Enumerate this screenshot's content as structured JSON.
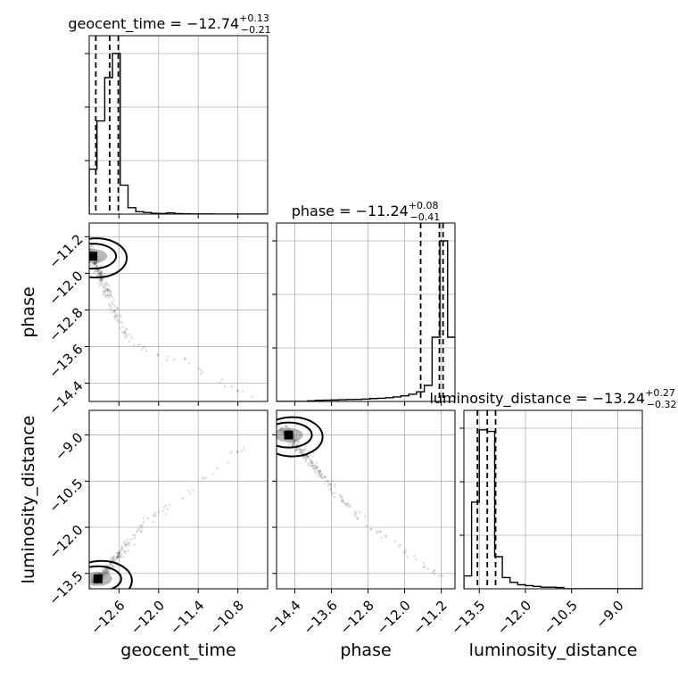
{
  "chart_data": {
    "type": "corner",
    "parameters": [
      {
        "name": "geocent_time",
        "xlabel": "geocent_time",
        "ylabel": "",
        "range": [
          -13.05,
          -10.35
        ],
        "ticks": [
          -12.6,
          -12.0,
          -11.4,
          -10.8
        ],
        "tick_labels": [
          "−12.6",
          "−12.0",
          "−11.4",
          "−10.8"
        ],
        "title": {
          "main": "geocent_time = −12.74",
          "sup": "+0.13",
          "sub": "−0.21"
        },
        "quantiles": [
          -12.95,
          -12.74,
          -12.61
        ],
        "hist_edges": [
          -13.05,
          -12.9325,
          -12.815,
          -12.6975,
          -12.58,
          -12.4625,
          -12.345,
          -12.2275,
          -12.11,
          -11.9925,
          -11.875,
          -11.7575,
          -11.64,
          -11.5225,
          -11.405,
          -11.2875,
          -11.17,
          -11.0525,
          -10.935,
          -10.8175,
          -10.7,
          -10.5825,
          -10.465,
          -10.35
        ],
        "hist_values": [
          0.28,
          0.58,
          0.85,
          1.0,
          0.18,
          0.04,
          0.015,
          0.01,
          0.005,
          0.004,
          0.008,
          0.003,
          0.002,
          0.001,
          0.001,
          0.001,
          0.0,
          0.0,
          0.0,
          0.0,
          0.0,
          0.0,
          0.0
        ]
      },
      {
        "name": "phase",
        "xlabel": "phase",
        "ylabel": "phase",
        "range": [
          -14.8,
          -10.9
        ],
        "ticks": [
          -14.4,
          -13.6,
          -12.8,
          -12.0,
          -11.2
        ],
        "tick_labels": [
          "−14.4",
          "−13.6",
          "−12.8",
          "−12.0",
          "−11.2"
        ],
        "title": {
          "main": "phase = −11.24",
          "sup": "+0.08",
          "sub": "−0.41"
        },
        "quantiles": [
          -11.65,
          -11.24,
          -11.16
        ],
        "hist_edges": [
          -14.8,
          -14.63,
          -14.46,
          -14.29,
          -14.12,
          -13.95,
          -13.78,
          -13.61,
          -13.44,
          -13.27,
          -13.1,
          -12.93,
          -12.76,
          -12.59,
          -12.42,
          -12.25,
          -12.08,
          -11.91,
          -11.74,
          -11.57,
          -11.4,
          -11.23,
          -11.06,
          -10.9
        ],
        "hist_values": [
          0.0,
          0.0,
          0.0,
          0.0,
          0.004,
          0.007,
          0.008,
          0.009,
          0.011,
          0.012,
          0.013,
          0.015,
          0.018,
          0.02,
          0.023,
          0.028,
          0.035,
          0.045,
          0.06,
          0.1,
          0.4,
          1.0,
          0.4
        ]
      },
      {
        "name": "luminosity_distance",
        "xlabel": "luminosity_distance",
        "ylabel": "luminosity_distance",
        "range": [
          -14.0,
          -8.2
        ],
        "ticks": [
          -13.5,
          -12.0,
          -10.5,
          -9.0
        ],
        "tick_labels": [
          "−13.5",
          "−12.0",
          "−10.5",
          "−9.0"
        ],
        "title": {
          "main": "luminosity_distance = −13.24",
          "sup": "+0.27",
          "sub": "−0.32"
        },
        "quantiles": [
          -13.56,
          -13.24,
          -12.97
        ],
        "hist_edges": [
          -14.0,
          -13.75,
          -13.5,
          -13.25,
          -13.0,
          -12.75,
          -12.5,
          -12.25,
          -12.0,
          -11.75,
          -11.5,
          -11.25,
          -11.0,
          -10.75,
          -10.5,
          -10.25,
          -10.0,
          -9.75,
          -9.5,
          -9.25,
          -9.0,
          -8.75,
          -8.5,
          -8.2
        ],
        "hist_values": [
          0.08,
          0.54,
          0.99,
          0.98,
          0.2,
          0.07,
          0.04,
          0.025,
          0.02,
          0.015,
          0.01,
          0.01,
          0.008,
          0.0,
          0.0,
          0.0,
          0.0,
          0.0,
          0.0,
          0.0,
          0.0,
          0.0,
          0.0
        ]
      }
    ],
    "scatter_trends": {
      "phase_vs_geocent_time": [
        [
          -13.05,
          -11.45
        ],
        [
          -12.95,
          -11.8
        ],
        [
          -12.85,
          -12.15
        ],
        [
          -12.75,
          -12.5
        ],
        [
          -12.62,
          -12.95
        ],
        [
          -12.5,
          -13.3
        ],
        [
          -12.35,
          -13.55
        ],
        [
          -12.1,
          -13.75
        ],
        [
          -11.8,
          -13.85
        ],
        [
          -11.5,
          -14.0
        ],
        [
          -11.2,
          -14.25
        ],
        [
          -10.9,
          -14.5
        ],
        [
          -10.6,
          -14.72
        ]
      ],
      "luminosity_distance_vs_geocent_time": [
        [
          -13.0,
          -13.8
        ],
        [
          -12.85,
          -13.55
        ],
        [
          -12.72,
          -13.25
        ],
        [
          -12.6,
          -12.9
        ],
        [
          -12.45,
          -12.45
        ],
        [
          -12.25,
          -11.95
        ],
        [
          -12.0,
          -11.5
        ],
        [
          -11.7,
          -11.05
        ],
        [
          -11.4,
          -10.6
        ],
        [
          -11.1,
          -10.1
        ],
        [
          -10.8,
          -9.55
        ],
        [
          -10.5,
          -8.9
        ]
      ],
      "luminosity_distance_vs_phase": [
        [
          -14.7,
          -8.7
        ],
        [
          -14.4,
          -9.3
        ],
        [
          -14.1,
          -9.8
        ],
        [
          -13.8,
          -10.35
        ],
        [
          -13.5,
          -10.9
        ],
        [
          -13.2,
          -11.35
        ],
        [
          -12.9,
          -11.8
        ],
        [
          -12.6,
          -12.15
        ],
        [
          -12.3,
          -12.45
        ],
        [
          -12.0,
          -12.75
        ],
        [
          -11.75,
          -13.05
        ],
        [
          -11.5,
          -13.3
        ],
        [
          -11.3,
          -13.45
        ],
        [
          -11.15,
          -13.6
        ]
      ]
    },
    "grid": true
  }
}
